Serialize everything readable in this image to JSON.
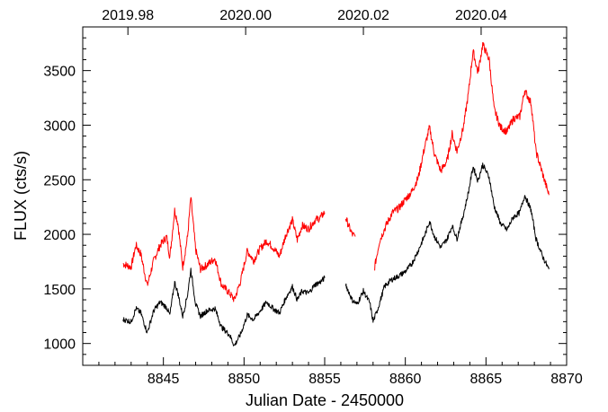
{
  "chart_data": {
    "type": "line",
    "title": "",
    "xlabel": "Julian Date - 2450000",
    "ylabel": "FLUX (cts/s)",
    "xlim": [
      8840,
      8870
    ],
    "ylim": [
      800,
      3900
    ],
    "x_ticks": [
      8845,
      8850,
      8855,
      8860,
      8865,
      8870
    ],
    "x_tick_labels": [
      "8845",
      "8850",
      "8855",
      "8860",
      "8865",
      "8870"
    ],
    "y_ticks": [
      1000,
      1500,
      2000,
      2500,
      3000,
      3500
    ],
    "y_tick_labels": [
      "1000",
      "1500",
      "2000",
      "2500",
      "3000",
      "3500"
    ],
    "top_axis": {
      "tick_x": [
        8842.8,
        8850.1,
        8857.4,
        8864.7
      ],
      "tick_labels": [
        "2019.98",
        "2020.00",
        "2020.02",
        "2020.04"
      ]
    },
    "grid": false,
    "legend": "none",
    "series": [
      {
        "color": "#ff0000",
        "segments": [
          [
            [
              8842.5,
              1730
            ],
            [
              8843.0,
              1700
            ],
            [
              8843.3,
              1900
            ],
            [
              8843.6,
              1820
            ],
            [
              8844.0,
              1530
            ],
            [
              8844.4,
              1760
            ],
            [
              8844.8,
              1900
            ],
            [
              8845.2,
              1980
            ],
            [
              8845.4,
              1790
            ],
            [
              8845.7,
              2220
            ],
            [
              8845.9,
              2100
            ],
            [
              8846.2,
              1700
            ],
            [
              8846.5,
              1980
            ],
            [
              8846.7,
              2340
            ],
            [
              8847.0,
              1860
            ],
            [
              8847.3,
              1680
            ],
            [
              8847.7,
              1720
            ],
            [
              8848.2,
              1780
            ],
            [
              8848.6,
              1540
            ],
            [
              8849.1,
              1460
            ],
            [
              8849.4,
              1400
            ],
            [
              8849.8,
              1580
            ],
            [
              8850.2,
              1850
            ],
            [
              8850.6,
              1760
            ],
            [
              8851.0,
              1870
            ],
            [
              8851.4,
              1940
            ],
            [
              8851.8,
              1880
            ],
            [
              8852.2,
              1800
            ],
            [
              8852.6,
              2000
            ],
            [
              8853.0,
              2130
            ],
            [
              8853.3,
              1950
            ],
            [
              8853.6,
              2080
            ],
            [
              8854.0,
              2050
            ],
            [
              8854.4,
              2130
            ],
            [
              8854.7,
              2150
            ],
            [
              8855.0,
              2200
            ]
          ],
          [
            [
              8856.3,
              2150
            ],
            [
              8856.7,
              2000
            ],
            [
              8856.9,
              1980
            ]
          ],
          [
            [
              8858.1,
              1700
            ],
            [
              8858.4,
              1940
            ],
            [
              8858.8,
              2080
            ],
            [
              8859.2,
              2200
            ],
            [
              8859.6,
              2240
            ],
            [
              8860.0,
              2320
            ],
            [
              8860.4,
              2390
            ],
            [
              8860.8,
              2520
            ],
            [
              8861.2,
              2800
            ],
            [
              8861.5,
              2980
            ],
            [
              8861.8,
              2740
            ],
            [
              8862.2,
              2580
            ],
            [
              8862.6,
              2680
            ],
            [
              8862.9,
              2920
            ],
            [
              8863.2,
              2760
            ],
            [
              8863.6,
              2980
            ],
            [
              8863.9,
              3280
            ],
            [
              8864.2,
              3680
            ],
            [
              8864.5,
              3480
            ],
            [
              8864.8,
              3740
            ],
            [
              8865.2,
              3600
            ],
            [
              8865.5,
              3150
            ],
            [
              8865.9,
              2980
            ],
            [
              8866.3,
              2940
            ],
            [
              8866.7,
              3060
            ],
            [
              8867.1,
              3080
            ],
            [
              8867.4,
              3320
            ],
            [
              8867.8,
              3200
            ],
            [
              8868.1,
              2760
            ],
            [
              8868.5,
              2560
            ],
            [
              8868.9,
              2360
            ]
          ]
        ]
      },
      {
        "color": "#000000",
        "segments": [
          [
            [
              8842.5,
              1220
            ],
            [
              8843.0,
              1200
            ],
            [
              8843.3,
              1320
            ],
            [
              8843.6,
              1280
            ],
            [
              8844.0,
              1100
            ],
            [
              8844.4,
              1300
            ],
            [
              8844.8,
              1380
            ],
            [
              8845.2,
              1330
            ],
            [
              8845.4,
              1260
            ],
            [
              8845.7,
              1560
            ],
            [
              8845.9,
              1460
            ],
            [
              8846.2,
              1250
            ],
            [
              8846.5,
              1450
            ],
            [
              8846.7,
              1680
            ],
            [
              8847.0,
              1360
            ],
            [
              8847.3,
              1250
            ],
            [
              8847.7,
              1300
            ],
            [
              8848.2,
              1320
            ],
            [
              8848.6,
              1150
            ],
            [
              8849.1,
              1080
            ],
            [
              8849.4,
              980
            ],
            [
              8849.8,
              1090
            ],
            [
              8850.2,
              1260
            ],
            [
              8850.6,
              1220
            ],
            [
              8851.0,
              1300
            ],
            [
              8851.4,
              1380
            ],
            [
              8851.8,
              1320
            ],
            [
              8852.2,
              1280
            ],
            [
              8852.6,
              1420
            ],
            [
              8853.0,
              1520
            ],
            [
              8853.3,
              1400
            ],
            [
              8853.6,
              1480
            ],
            [
              8854.0,
              1460
            ],
            [
              8854.4,
              1540
            ],
            [
              8854.7,
              1560
            ],
            [
              8855.0,
              1600
            ]
          ],
          [
            [
              8856.3,
              1540
            ],
            [
              8856.7,
              1400
            ],
            [
              8857.0,
              1360
            ],
            [
              8857.4,
              1480
            ],
            [
              8857.8,
              1370
            ],
            [
              8858.0,
              1200
            ],
            [
              8858.3,
              1320
            ],
            [
              8858.7,
              1520
            ],
            [
              8859.1,
              1580
            ],
            [
              8859.6,
              1620
            ],
            [
              8860.0,
              1660
            ],
            [
              8860.4,
              1730
            ],
            [
              8860.8,
              1850
            ],
            [
              8861.2,
              1990
            ],
            [
              8861.5,
              2120
            ],
            [
              8861.8,
              1980
            ],
            [
              8862.2,
              1880
            ],
            [
              8862.6,
              1960
            ],
            [
              8862.9,
              2080
            ],
            [
              8863.2,
              1960
            ],
            [
              8863.6,
              2180
            ],
            [
              8863.9,
              2380
            ],
            [
              8864.2,
              2620
            ],
            [
              8864.5,
              2490
            ],
            [
              8864.8,
              2640
            ],
            [
              8865.2,
              2520
            ],
            [
              8865.5,
              2260
            ],
            [
              8865.9,
              2100
            ],
            [
              8866.3,
              2040
            ],
            [
              8866.7,
              2160
            ],
            [
              8867.1,
              2200
            ],
            [
              8867.4,
              2360
            ],
            [
              8867.8,
              2220
            ],
            [
              8868.1,
              1960
            ],
            [
              8868.5,
              1800
            ],
            [
              8868.9,
              1680
            ]
          ]
        ]
      }
    ]
  }
}
